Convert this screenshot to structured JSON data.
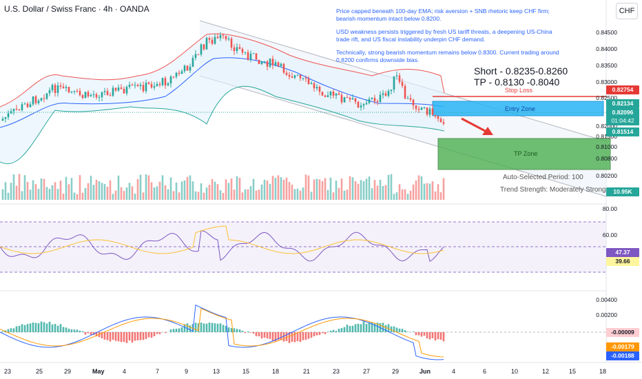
{
  "header": {
    "title": "U.S. Dollar / Swiss Franc · 4h · OANDA",
    "currency": "CHF"
  },
  "notes": [
    "Price capped beneath 100-day EMA; risk aversion + SNB rhetoric keep CHF firm; bearish momentum intact below 0.8200.",
    "USD weakness persists triggered by fresh US tariff threats, a deepening US-China trade rift, and US fiscal instability underpin CHF demand.",
    "Technically, strong bearish momentum remains below 0.8300. Current trading around 0.8200 confirms downside bias."
  ],
  "trade": {
    "short": "Short - 0.8235-0.8260",
    "tp": "TP  - 0.8130 -0.8040"
  },
  "zones": {
    "stop_loss": "Stop Loss",
    "entry": "Entry Zone",
    "tp": "TP Zone"
  },
  "indicator_info": {
    "period": "Auto-Selected Period: 100",
    "strength": "Trend Strength: Moderately Strong"
  },
  "price_axis": [
    "0.84500",
    "0.84000",
    "0.83500",
    "0.83000",
    "0.82500",
    "0.82000",
    "0.81500",
    "0.81000",
    "0.80800",
    "0.80200"
  ],
  "price_tags": {
    "stop": "0.82754",
    "upper": "0.82134",
    "last": "0.82096",
    "countdown": "01:04:42",
    "lower": "0.81514",
    "volume": "10.95K"
  },
  "rsi": {
    "axis": [
      "80.00",
      "60.00"
    ],
    "value": "47.37",
    "ma": "39.66"
  },
  "macd": {
    "axis": [
      "0.00400",
      "0.00200"
    ],
    "hist": "-0.00009",
    "signal": "-0.00179",
    "macd": "-0.00188"
  },
  "dates": [
    "23",
    "25",
    "29",
    "May",
    "4",
    "7",
    "9",
    "13",
    "15",
    "18",
    "21",
    "23",
    "27",
    "29",
    "Jun",
    "4",
    "6",
    "10",
    "12",
    "15",
    "18"
  ],
  "colors": {
    "up": "#26a69a",
    "down": "#ef5350",
    "entry": "#29b6f6",
    "tp": "#4caf50",
    "stop": "#e53935",
    "rsi": "#7e57c2",
    "macd": "#2962ff",
    "signal": "#ff9800"
  }
}
